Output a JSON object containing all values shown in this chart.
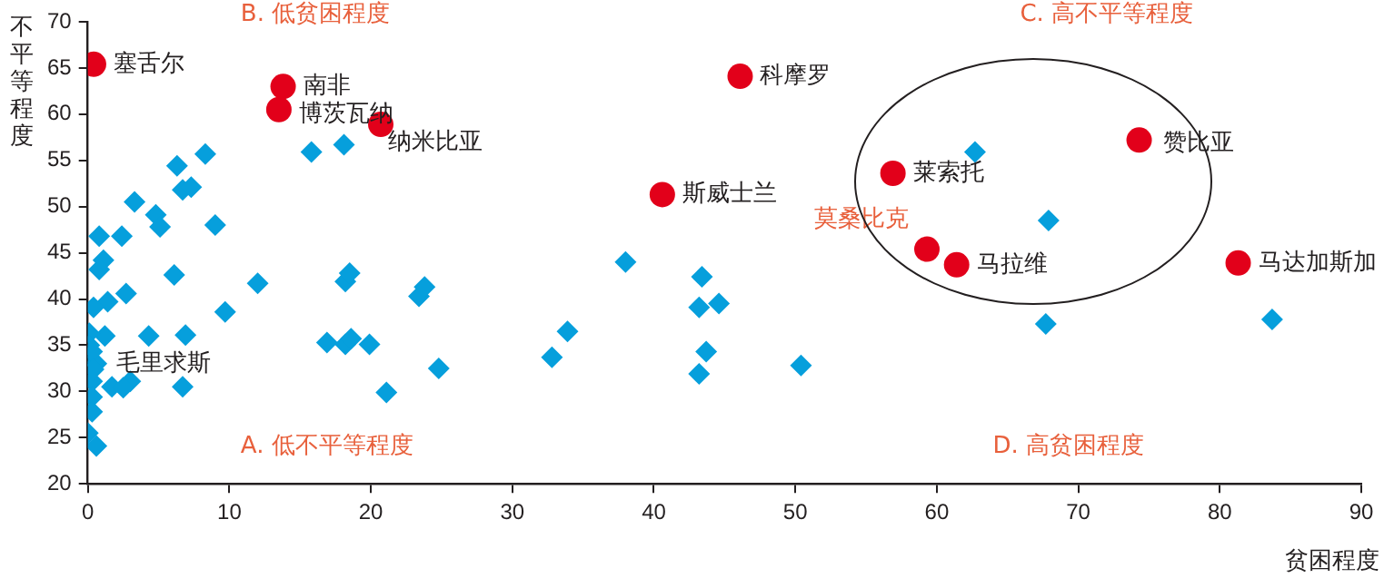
{
  "chart_data": {
    "type": "scatter",
    "xlabel": "贫困程度",
    "ylabel": "不平等程度",
    "xlim": [
      0,
      90
    ],
    "xticks": [
      0,
      10,
      20,
      30,
      40,
      50,
      60,
      70,
      80,
      90
    ],
    "ylim": [
      20,
      70
    ],
    "yticks": [
      20,
      25,
      30,
      35,
      40,
      45,
      50,
      55,
      60,
      65,
      70
    ],
    "grid": false,
    "legend": false,
    "series": [
      {
        "color": "#069fdc",
        "marker": "diamond",
        "x": [
          8.3,
          6.3,
          6.7,
          7.3,
          3.3,
          4.8,
          5.1,
          9.0,
          0.8,
          2.4,
          1.1,
          0.8,
          6.1,
          12.0,
          18.2,
          18.5,
          23.4,
          23.8,
          2.7,
          1.4,
          0.4,
          9.7,
          4.3,
          6.9,
          1.2,
          0.1,
          0.1,
          16.9,
          18.2,
          18.6,
          19.9,
          0.1,
          0.6,
          0.3,
          24.8,
          1.7,
          3.0,
          2.5,
          6.7,
          21.1,
          0.3,
          0.3,
          0.3,
          0,
          0.6,
          0.4,
          15.8,
          18.1,
          38.0,
          43.4,
          43.2,
          44.6,
          33.9,
          32.8,
          43.7,
          43.2,
          50.4,
          62.7,
          67.9,
          67.7,
          83.7
        ],
        "values": [
          55.7,
          54.4,
          51.8,
          52.1,
          50.5,
          49.1,
          47.8,
          48.0,
          46.8,
          46.8,
          44.2,
          43.2,
          42.6,
          41.7,
          41.9,
          42.8,
          40.3,
          41.3,
          40.6,
          39.7,
          39.1,
          38.6,
          36.0,
          36.1,
          36.0,
          36.3,
          35.0,
          35.3,
          35.1,
          35.7,
          35.1,
          33.7,
          33.0,
          34.3,
          32.5,
          30.5,
          31.1,
          30.4,
          30.5,
          29.9,
          31.1,
          29.4,
          27.8,
          25.5,
          24.1,
          32.4,
          55.9,
          56.7,
          44.0,
          42.4,
          39.1,
          39.5,
          36.5,
          33.7,
          34.3,
          31.9,
          32.8,
          55.9,
          48.5,
          37.3,
          37.8
        ]
      },
      {
        "color": "#e2001a",
        "marker": "circle",
        "x": [
          0.4,
          13.8,
          13.5,
          20.7,
          46.1,
          40.6,
          56.9,
          74.3,
          59.3,
          61.4,
          81.3
        ],
        "values": [
          65.4,
          63.0,
          60.5,
          58.9,
          64.1,
          51.3,
          53.6,
          57.2,
          45.4,
          43.7,
          43.9
        ]
      }
    ],
    "annotations": [
      {
        "text": "塞舌尔",
        "x": 0.4,
        "y": 65.4
      },
      {
        "text": "南非",
        "x": 13.8,
        "y": 63.0
      },
      {
        "text": "博茨瓦纳",
        "x": 13.5,
        "y": 60.5
      },
      {
        "text": "纳米比亚",
        "x": 20.7,
        "y": 58.9
      },
      {
        "text": "科摩罗",
        "x": 46.1,
        "y": 64.1
      },
      {
        "text": "斯威士兰",
        "x": 40.6,
        "y": 51.3
      },
      {
        "text": "莱索托",
        "x": 56.9,
        "y": 53.6
      },
      {
        "text": "赞比亚",
        "x": 74.3,
        "y": 57.2
      },
      {
        "text": "莫桑比克",
        "x": 59.3,
        "y": 45.4
      },
      {
        "text": "马拉维",
        "x": 61.4,
        "y": 43.7
      },
      {
        "text": "马达加斯加",
        "x": 81.3,
        "y": 43.9
      },
      {
        "text": "毛里求斯",
        "x": 0.6,
        "y": 33.0
      },
      "B. 低贫困程度",
      "C. 高不平等程度",
      "A. 低不平等程度",
      "D. 高贫困程度"
    ]
  }
}
